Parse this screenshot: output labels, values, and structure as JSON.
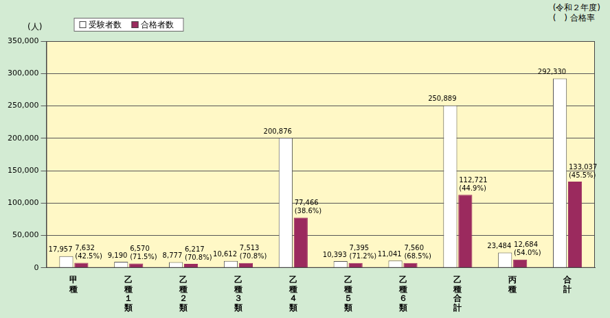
{
  "chart_data": {
    "type": "bar",
    "annotations": [
      "(令和２年度)",
      "(　) 合格率"
    ],
    "y_label": "(人)",
    "categories": [
      "甲種",
      "乙種１類",
      "乙種２類",
      "乙種３類",
      "乙種４類",
      "乙種５類",
      "乙種６類",
      "乙種合計",
      "丙種",
      "合計"
    ],
    "series": [
      {
        "name": "受験者数",
        "color": "#ffffff",
        "values": [
          17957,
          9190,
          8777,
          10612,
          200876,
          10393,
          11041,
          250889,
          23484,
          292330
        ],
        "value_labels": [
          "17,957",
          "9,190",
          "8,777",
          "10,612",
          "200,876",
          "10,393",
          "11,041",
          "250,889",
          "23,484",
          "292,330"
        ]
      },
      {
        "name": "合格者数",
        "color": "#9b2a5e",
        "values": [
          7632,
          6570,
          6217,
          7513,
          77466,
          7395,
          7560,
          112721,
          12684,
          133037
        ],
        "value_labels": [
          "7,632",
          "6,570",
          "6,217",
          "7,513",
          "77,466",
          "7,395",
          "7,560",
          "112,721",
          "12,684",
          "133,037"
        ],
        "rate_labels": [
          "(42.5%)",
          "(71.5%)",
          "(70.8%)",
          "(70.8%)",
          "(38.6%)",
          "(71.2%)",
          "(68.5%)",
          "(44.9%)",
          "(54.0%)",
          "(45.5%)"
        ]
      }
    ],
    "ylim": [
      0,
      350000
    ],
    "yticks": [
      {
        "value": 0,
        "label": "0"
      },
      {
        "value": 50000,
        "label": "50,000"
      },
      {
        "value": 100000,
        "label": "100,000"
      },
      {
        "value": 150000,
        "label": "150,000"
      },
      {
        "value": 200000,
        "label": "200,000"
      },
      {
        "value": 250000,
        "label": "250,000"
      },
      {
        "value": 300000,
        "label": "300,000"
      },
      {
        "value": 350000,
        "label": "350,000"
      }
    ],
    "grid": true,
    "legend": "upper left",
    "data_labels": true
  }
}
